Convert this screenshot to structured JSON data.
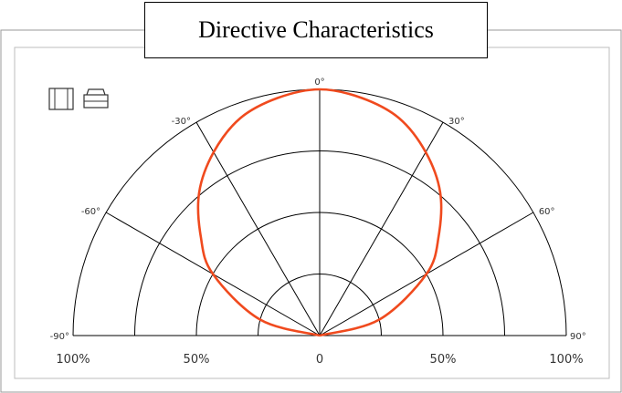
{
  "title": "Directive Characteristics",
  "icons": [
    "led-side-view-icon",
    "led-front-view-icon"
  ],
  "colors": {
    "curve": "#f04a1e",
    "grid": "#000000",
    "frame": "#9a9a9a",
    "text": "#333333"
  },
  "chart_data": {
    "type": "polar",
    "title": "Directive Characteristics",
    "angle_range": [
      -90,
      90
    ],
    "angle_ticks": [
      "-90°",
      "-60°",
      "-30°",
      "0°",
      "30°",
      "60°",
      "90°"
    ],
    "angle_tick_values": [
      -90,
      -60,
      -30,
      0,
      30,
      60,
      90
    ],
    "radial_rings": [
      0.25,
      0.5,
      0.75,
      1.0
    ],
    "radial_tick_labels": [
      "100%",
      "50%",
      "0",
      "50%",
      "100%"
    ],
    "radial_tick_values": [
      -1.0,
      -0.5,
      0,
      0.5,
      1.0
    ],
    "series": [
      {
        "angles": [
          -90,
          -75,
          -60,
          -50,
          -40,
          -30,
          -20,
          -10,
          0,
          10,
          20,
          30,
          40,
          50,
          60,
          75,
          90
        ],
        "values": [
          0.0,
          0.25,
          0.5,
          0.63,
          0.76,
          0.86,
          0.94,
          0.98,
          1.0,
          0.98,
          0.94,
          0.86,
          0.76,
          0.63,
          0.5,
          0.25,
          0.0
        ]
      }
    ]
  }
}
